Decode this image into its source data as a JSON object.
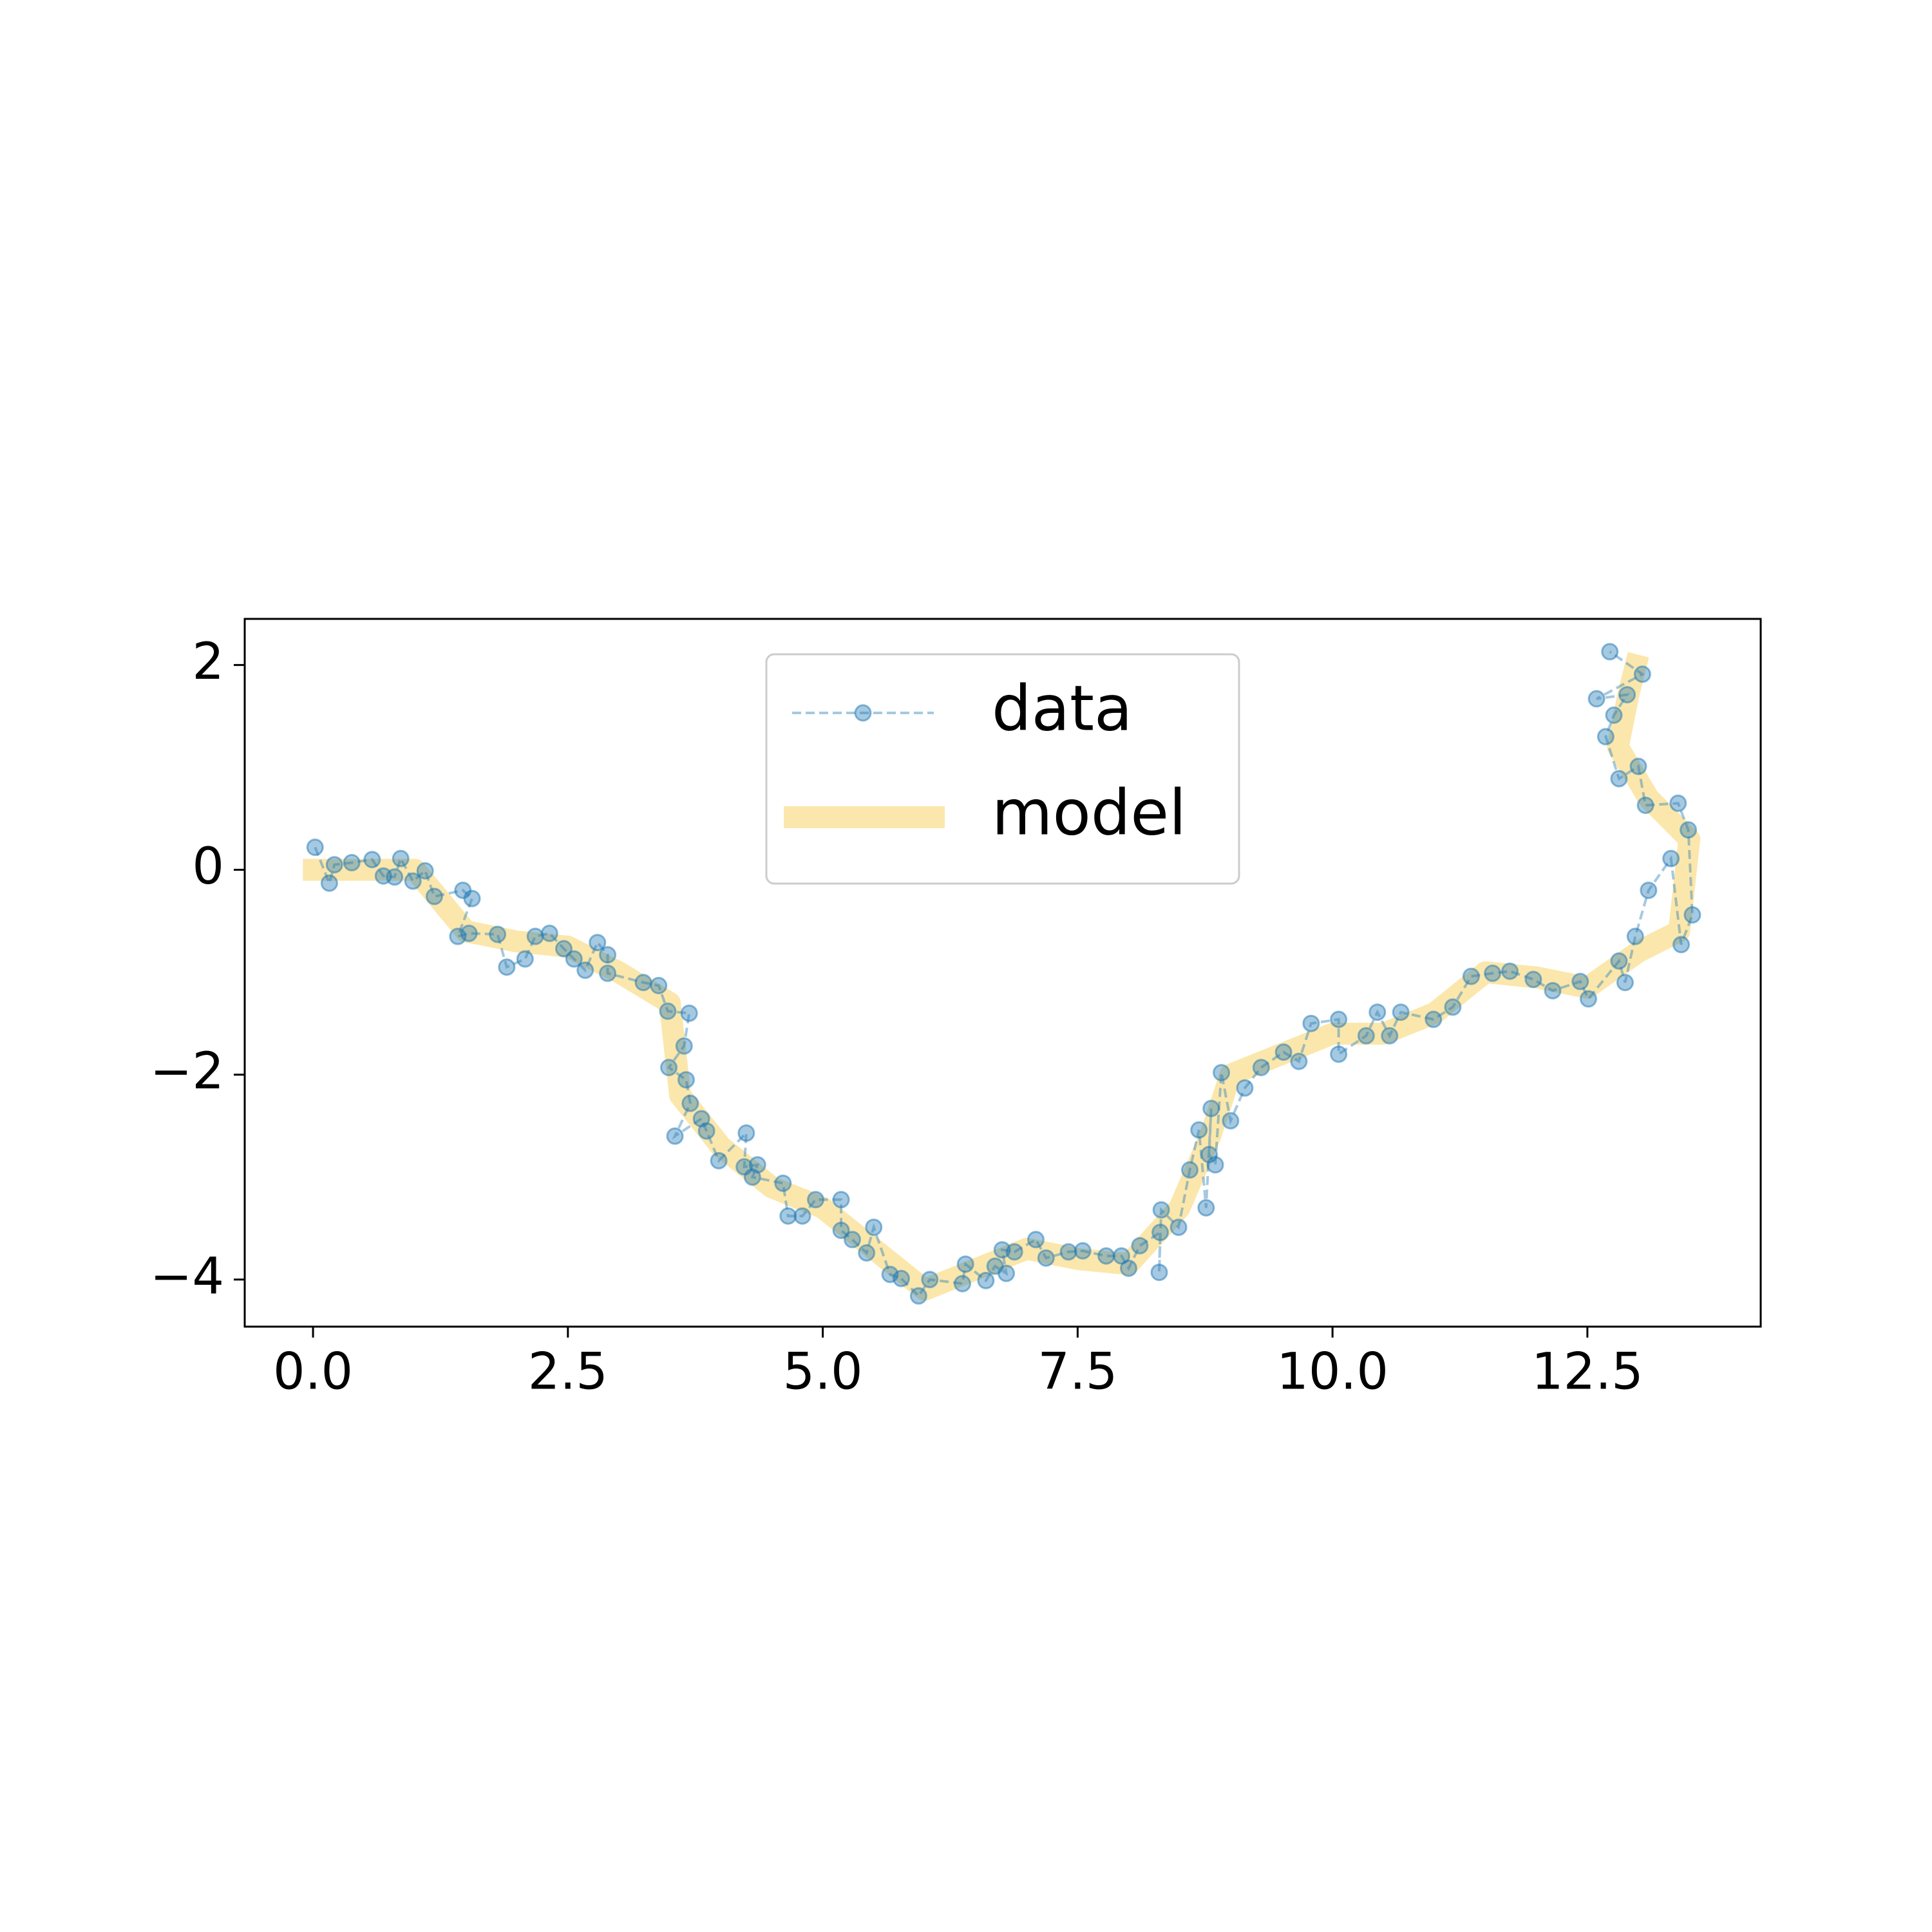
{
  "chart_data": {
    "type": "line",
    "xlim": [
      -0.67,
      14.2
    ],
    "ylim": [
      -4.46,
      2.45
    ],
    "xticks": [
      {
        "value": 0,
        "label": "0.0"
      },
      {
        "value": 2.5,
        "label": "2.5"
      },
      {
        "value": 5,
        "label": "5.0"
      },
      {
        "value": 7.5,
        "label": "7.5"
      },
      {
        "value": 10,
        "label": "10.0"
      },
      {
        "value": 12.5,
        "label": "12.5"
      }
    ],
    "yticks": [
      {
        "value": -4,
        "label": "−4"
      },
      {
        "value": -2,
        "label": "−2"
      },
      0,
      2
    ],
    "legend": "upper center",
    "series": [
      {
        "name": "data",
        "color": "#1f77b4",
        "x": [
          0.02,
          0.16,
          0.21,
          0.38,
          0.58,
          0.69,
          0.8,
          0.86,
          0.98,
          1.1,
          1.19,
          1.47,
          1.56,
          1.42,
          1.53,
          1.81,
          1.9,
          2.08,
          2.18,
          2.32,
          2.46,
          2.56,
          2.67,
          2.79,
          2.89,
          2.89,
          3.24,
          3.39,
          3.48,
          3.69,
          3.64,
          3.49,
          3.66,
          3.7,
          3.55,
          3.81,
          3.86,
          3.98,
          4.25,
          4.23,
          4.36,
          4.31,
          4.61,
          4.66,
          4.8,
          4.93,
          5.18,
          5.18,
          5.29,
          5.43,
          5.5,
          5.66,
          5.77,
          5.94,
          6.05,
          6.37,
          6.4,
          6.6,
          6.69,
          6.8,
          6.76,
          6.88,
          7.09,
          7.19,
          7.41,
          7.55,
          7.78,
          7.93,
          8.0,
          8.11,
          8.31,
          8.3,
          8.32,
          8.49,
          8.6,
          8.69,
          8.76,
          8.81,
          8.79,
          8.85,
          8.91,
          9.0,
          9.14,
          9.3,
          9.52,
          9.67,
          9.79,
          10.06,
          10.06,
          10.33,
          10.44,
          10.56,
          10.67,
          10.99,
          11.18,
          11.36,
          11.57,
          11.74,
          11.97,
          12.16,
          12.43,
          12.51,
          12.81,
          12.87,
          12.97,
          13.1,
          13.32,
          13.42,
          13.53,
          13.49,
          13.39,
          13.07,
          13.0,
          12.81,
          12.68,
          12.76,
          12.89,
          12.59,
          13.04,
          12.72
        ],
        "values": [
          0.22,
          -0.13,
          0.05,
          0.07,
          0.1,
          -0.06,
          -0.07,
          0.11,
          -0.11,
          -0.01,
          -0.26,
          -0.2,
          -0.28,
          -0.65,
          -0.62,
          -0.63,
          -0.95,
          -0.87,
          -0.65,
          -0.62,
          -0.77,
          -0.87,
          -0.98,
          -0.71,
          -0.83,
          -1.01,
          -1.1,
          -1.13,
          -1.38,
          -1.4,
          -1.72,
          -1.93,
          -2.05,
          -2.28,
          -2.6,
          -2.43,
          -2.55,
          -2.84,
          -2.57,
          -2.9,
          -2.88,
          -3.0,
          -3.06,
          -3.38,
          -3.38,
          -3.22,
          -3.22,
          -3.52,
          -3.61,
          -3.74,
          -3.49,
          -3.95,
          -3.99,
          -4.16,
          -4.0,
          -4.04,
          -3.85,
          -4.01,
          -3.87,
          -3.94,
          -3.71,
          -3.73,
          -3.61,
          -3.79,
          -3.73,
          -3.72,
          -3.77,
          -3.77,
          -3.89,
          -3.67,
          -3.54,
          -3.93,
          -3.32,
          -3.49,
          -2.93,
          -2.54,
          -3.3,
          -2.33,
          -2.78,
          -2.88,
          -1.98,
          -2.45,
          -2.13,
          -1.93,
          -1.78,
          -1.87,
          -1.5,
          -1.46,
          -1.8,
          -1.62,
          -1.39,
          -1.62,
          -1.39,
          -1.46,
          -1.34,
          -1.04,
          -1.01,
          -0.99,
          -1.07,
          -1.18,
          -1.09,
          -1.26,
          -0.89,
          -1.1,
          -0.65,
          -0.2,
          0.11,
          -0.73,
          -0.44,
          0.39,
          0.65,
          0.63,
          1.01,
          0.89,
          1.3,
          1.51,
          1.71,
          1.67,
          1.91,
          2.13
        ]
      },
      {
        "name": "model",
        "color": "#f7c948",
        "x": [
          -0.1,
          1.0,
          1.5,
          2.0,
          2.5,
          3.0,
          3.5,
          3.6,
          4.0,
          4.5,
          5.0,
          5.5,
          6.0,
          6.5,
          7.0,
          7.5,
          8.0,
          8.5,
          8.8,
          9.0,
          9.5,
          10.0,
          10.5,
          11.0,
          11.5,
          12.0,
          12.5,
          13.0,
          13.4,
          13.5,
          13.1,
          12.8,
          12.9,
          13.0
        ],
        "values": [
          0,
          0,
          -0.6,
          -0.7,
          -0.75,
          -1.0,
          -1.3,
          -2.2,
          -2.7,
          -3.1,
          -3.3,
          -3.7,
          -4.1,
          -3.9,
          -3.7,
          -3.8,
          -3.85,
          -3.3,
          -2.6,
          -2.0,
          -1.8,
          -1.6,
          -1.6,
          -1.4,
          -1.0,
          -1.05,
          -1.15,
          -0.8,
          -0.6,
          0.3,
          0.7,
          1.2,
          1.7,
          2.1
        ]
      }
    ]
  }
}
